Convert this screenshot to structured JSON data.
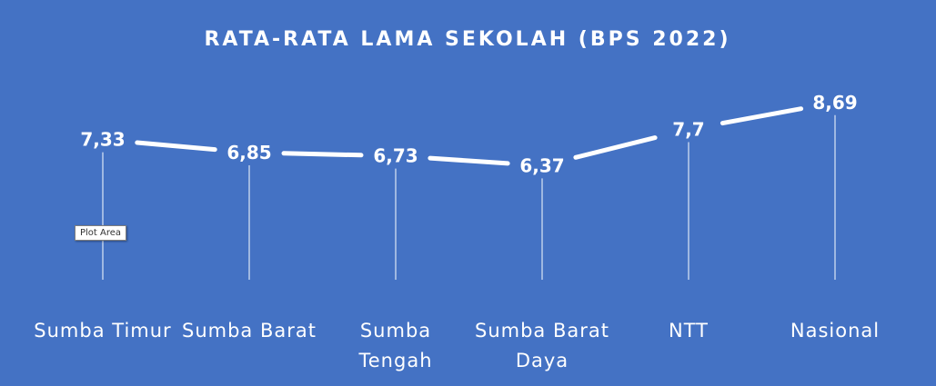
{
  "tooltip": {
    "label": "Plot Area"
  },
  "chart_data": {
    "type": "line",
    "title": "RATA-RATA LAMA SEKOLAH (BPS 2022)",
    "categories": [
      "Sumba Timur",
      "Sumba Barat",
      "Sumba Tengah",
      "Sumba Barat Daya",
      "NTT",
      "Nasional"
    ],
    "category_lines": [
      [
        "Sumba Timur"
      ],
      [
        "Sumba Barat"
      ],
      [
        "Sumba",
        "Tengah"
      ],
      [
        "Sumba Barat",
        "Daya"
      ],
      [
        "NTT"
      ],
      [
        "Nasional"
      ]
    ],
    "series": [
      {
        "values": [
          7.33,
          6.85,
          6.73,
          6.37,
          7.7,
          8.69
        ],
        "labels": [
          "7,33",
          "6,85",
          "6,73",
          "6,37",
          "7,7",
          "8,69"
        ]
      }
    ],
    "xlabel": "",
    "ylabel": "",
    "ylim": [
      0,
      10
    ],
    "drop_lines": true,
    "grid": false,
    "legend": "none",
    "colors": {
      "background": "#4472C4",
      "line": "#FFFFFF",
      "drop_line": "#DCE6F5",
      "text": "#FFFFFF"
    }
  }
}
